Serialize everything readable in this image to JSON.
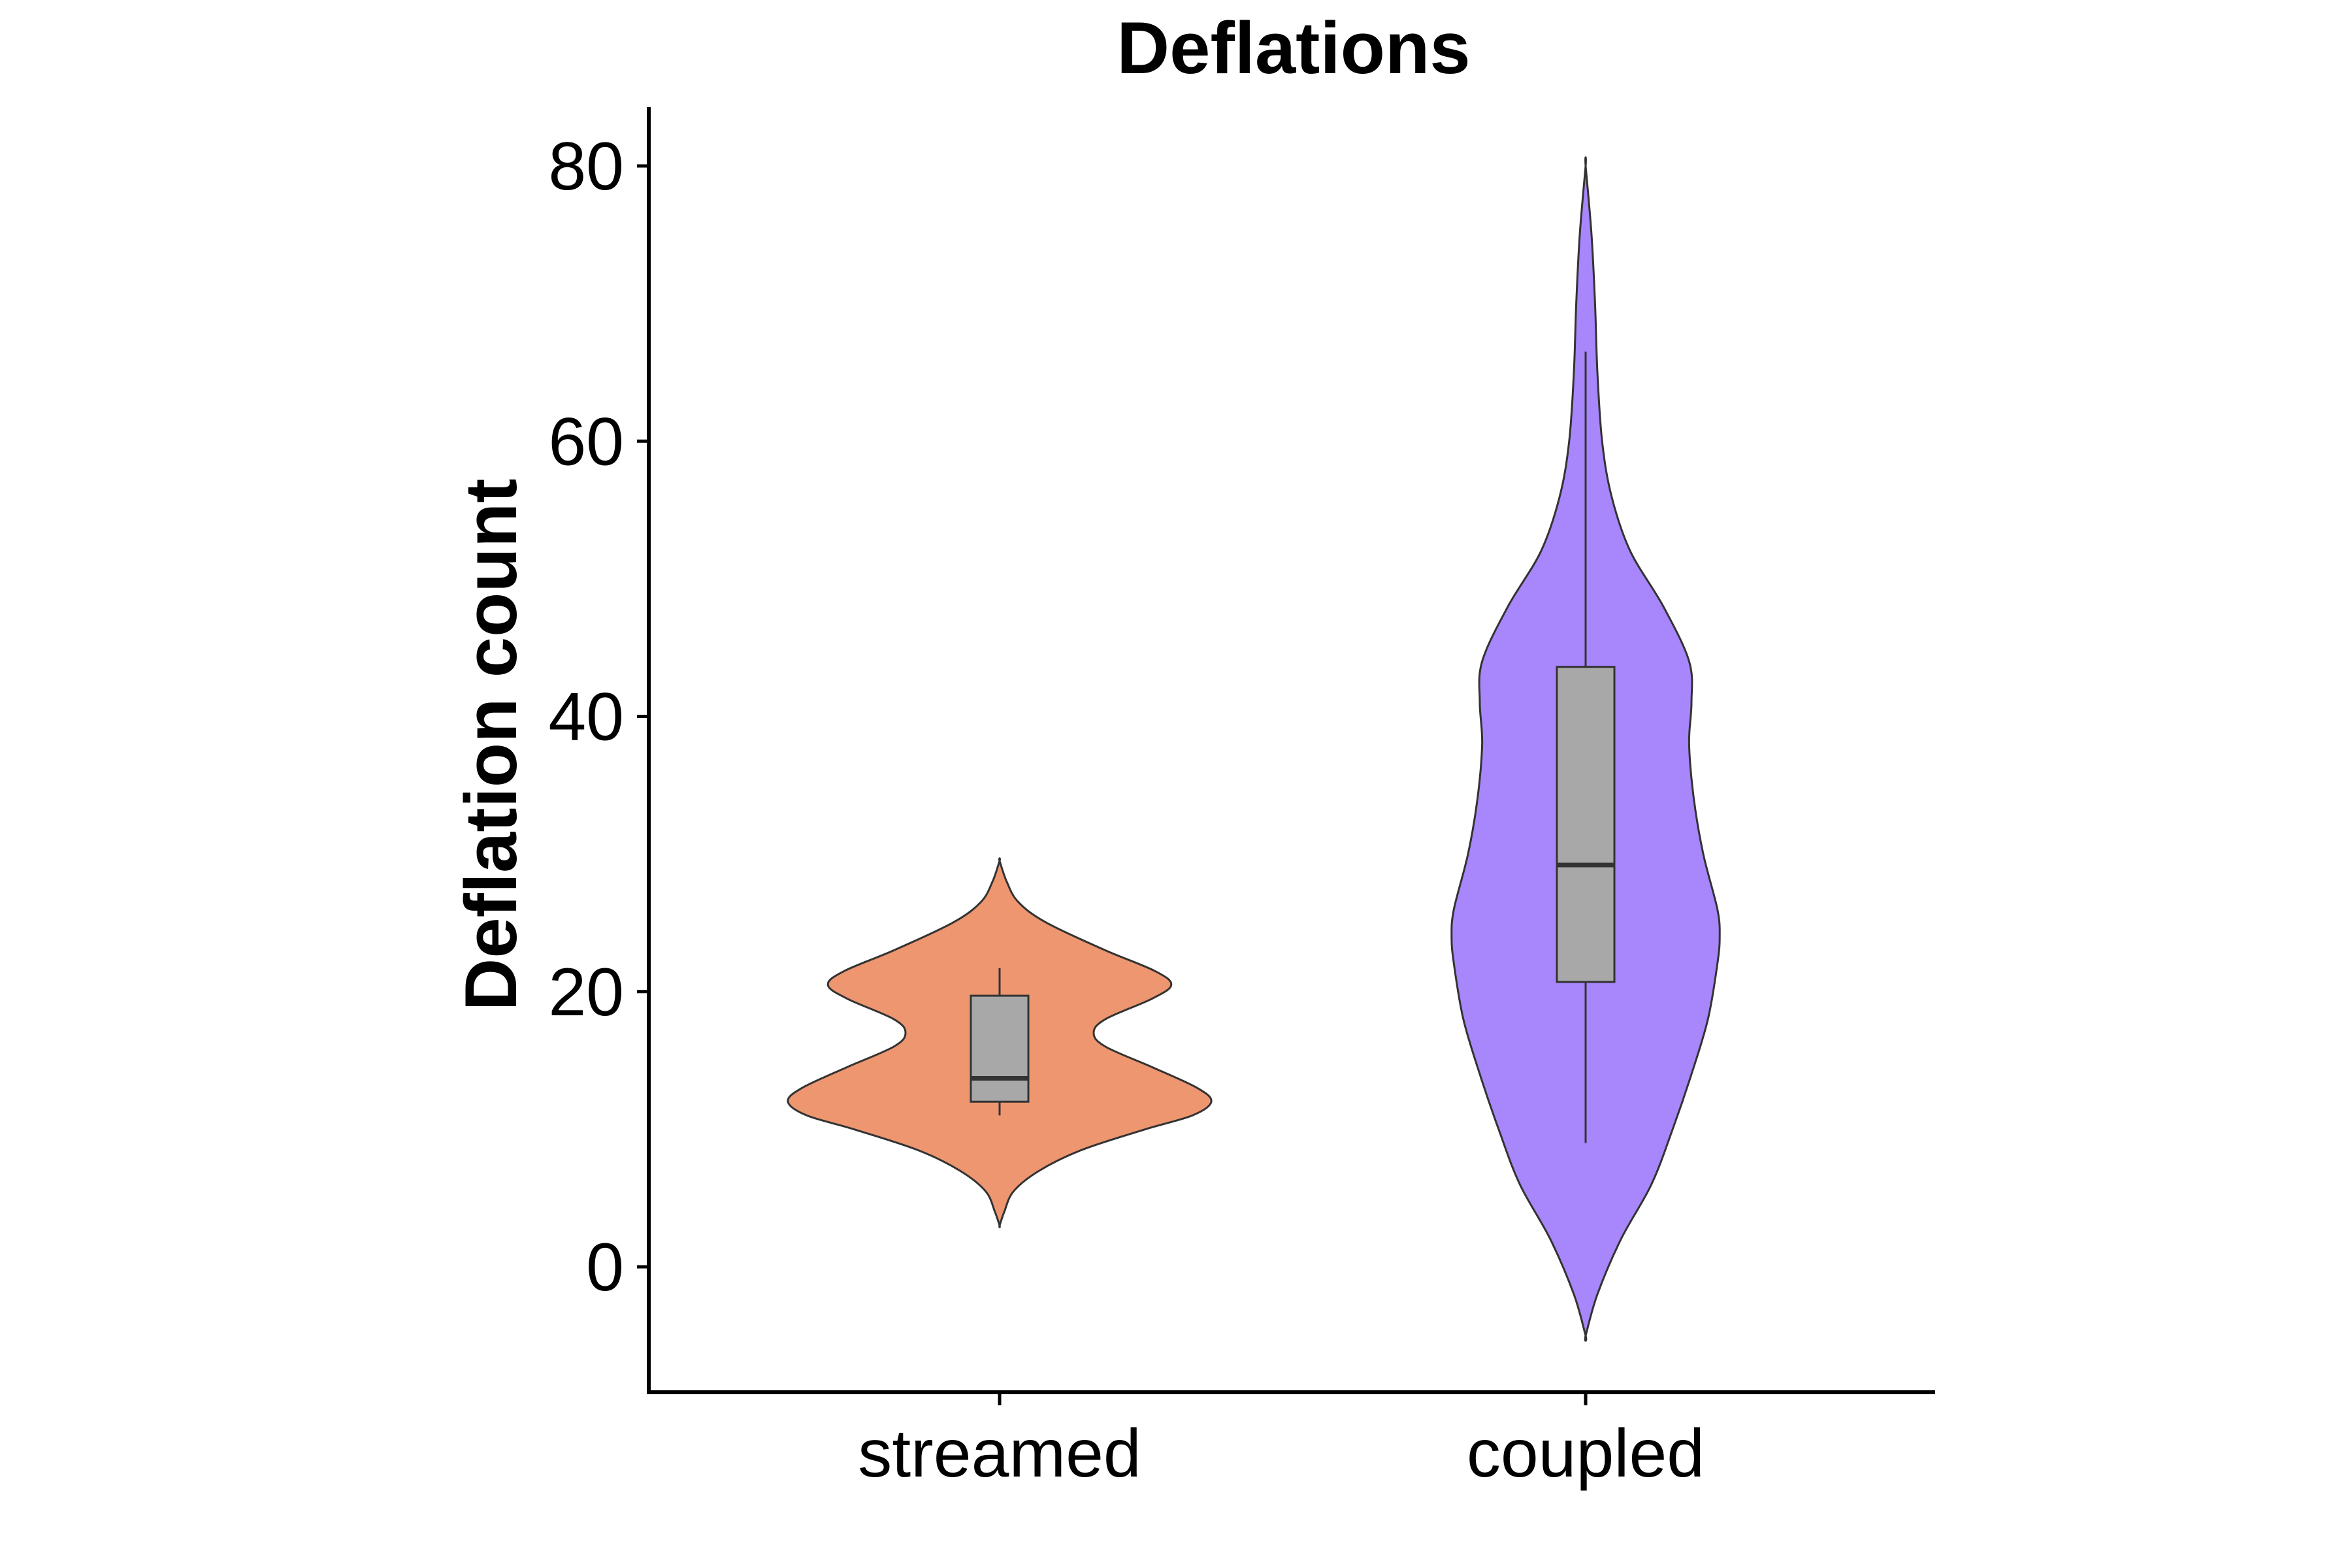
{
  "chart_data": {
    "type": "violin",
    "title": "Deflations",
    "xlabel": "",
    "ylabel": "Deflation count",
    "ylim": [
      -9,
      84
    ],
    "yticks": [
      0,
      20,
      40,
      60,
      80
    ],
    "grid": false,
    "legend": "none",
    "categories": [
      "streamed",
      "coupled"
    ],
    "colors": {
      "streamed": "#EE9670",
      "coupled": "#A886FB",
      "box": "#A8A8A8",
      "outline": "#333333"
    },
    "violins": [
      {
        "category": "streamed",
        "density": [
          {
            "y": 3.0,
            "w": 0.0
          },
          {
            "y": 4.0,
            "w": 0.02
          },
          {
            "y": 5.5,
            "w": 0.06
          },
          {
            "y": 7.0,
            "w": 0.17
          },
          {
            "y": 8.5,
            "w": 0.35
          },
          {
            "y": 10.0,
            "w": 0.62
          },
          {
            "y": 11.0,
            "w": 0.82
          },
          {
            "y": 12.0,
            "w": 0.9
          },
          {
            "y": 13.0,
            "w": 0.84
          },
          {
            "y": 14.5,
            "w": 0.65
          },
          {
            "y": 16.0,
            "w": 0.45
          },
          {
            "y": 17.0,
            "w": 0.4
          },
          {
            "y": 18.0,
            "w": 0.45
          },
          {
            "y": 19.5,
            "w": 0.65
          },
          {
            "y": 20.5,
            "w": 0.73
          },
          {
            "y": 21.5,
            "w": 0.66
          },
          {
            "y": 23.0,
            "w": 0.45
          },
          {
            "y": 25.0,
            "w": 0.2
          },
          {
            "y": 26.5,
            "w": 0.08
          },
          {
            "y": 28.0,
            "w": 0.03
          },
          {
            "y": 29.5,
            "w": 0.0
          }
        ],
        "box": {
          "min": 11.0,
          "q1": 12.0,
          "median": 13.7,
          "q3": 19.7,
          "max": 21.7
        }
      },
      {
        "category": "coupled",
        "density": [
          {
            "y": -5.0,
            "w": 0.0
          },
          {
            "y": -2.0,
            "w": 0.05
          },
          {
            "y": 2.0,
            "w": 0.15
          },
          {
            "y": 6.0,
            "w": 0.28
          },
          {
            "y": 10.0,
            "w": 0.37
          },
          {
            "y": 14.0,
            "w": 0.45
          },
          {
            "y": 18.0,
            "w": 0.52
          },
          {
            "y": 22.0,
            "w": 0.56
          },
          {
            "y": 24.0,
            "w": 0.57
          },
          {
            "y": 26.0,
            "w": 0.56
          },
          {
            "y": 30.0,
            "w": 0.5
          },
          {
            "y": 34.0,
            "w": 0.46
          },
          {
            "y": 38.0,
            "w": 0.44
          },
          {
            "y": 41.0,
            "w": 0.45
          },
          {
            "y": 44.0,
            "w": 0.44
          },
          {
            "y": 48.0,
            "w": 0.33
          },
          {
            "y": 52.0,
            "w": 0.19
          },
          {
            "y": 56.0,
            "w": 0.11
          },
          {
            "y": 60.0,
            "w": 0.07
          },
          {
            "y": 65.0,
            "w": 0.05
          },
          {
            "y": 70.0,
            "w": 0.04
          },
          {
            "y": 75.0,
            "w": 0.025
          },
          {
            "y": 80.0,
            "w": 0.0
          }
        ],
        "box": {
          "min": 9.0,
          "q1": 20.7,
          "median": 29.2,
          "q3": 43.6,
          "max": 66.5
        }
      }
    ]
  }
}
